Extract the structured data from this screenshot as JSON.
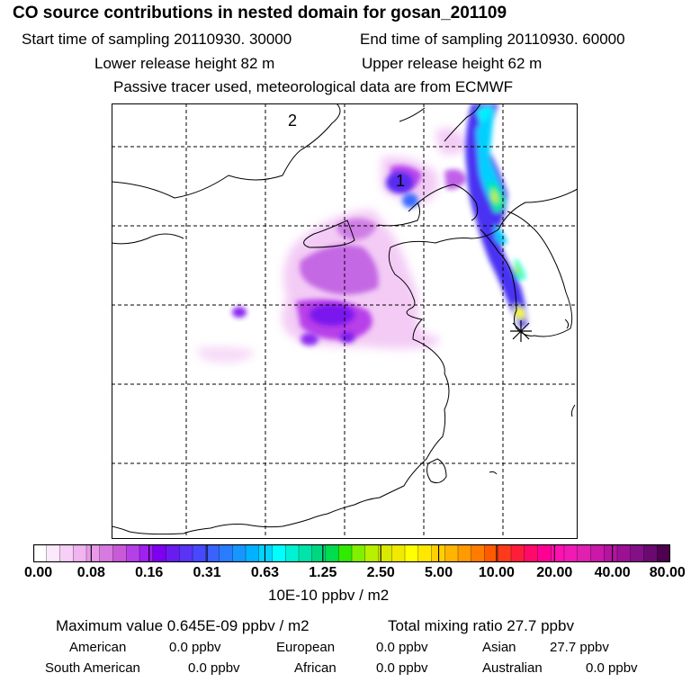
{
  "header": {
    "title": "CO  source contributions in nested domain for gosan_201109",
    "start_time": "Start time of sampling 20110930. 30000",
    "end_time": "End time of sampling 20110930. 60000",
    "lower_release": "Lower release height   82 m",
    "upper_release": "Upper release height   62 m",
    "tracer_note": "Passive tracer used, meteorological data are from ECMWF"
  },
  "map": {
    "label_1": "1",
    "label_2": "2"
  },
  "colorbar": {
    "ticks": [
      "0.00",
      "0.08",
      "0.16",
      "0.31",
      "0.63",
      "1.25",
      "2.50",
      "5.00",
      "10.00",
      "20.00",
      "40.00",
      "80.00"
    ],
    "unit": "10E-10 ppbv / m2",
    "colors": [
      "#ffffff",
      "#fbe8fb",
      "#f6d0f6",
      "#f0b4f0",
      "#e69ae8",
      "#d77ae0",
      "#c85ad8",
      "#b640e8",
      "#a020f0",
      "#7e00f0",
      "#6a1cf0",
      "#5a34f4",
      "#4848ff",
      "#3a62ff",
      "#2a7cff",
      "#1896ff",
      "#00b2ff",
      "#00d4ff",
      "#00ffff",
      "#00f2d4",
      "#00e4aa",
      "#00d880",
      "#00dc4e",
      "#30ea00",
      "#80f000",
      "#b8f000",
      "#d8ea00",
      "#f0ea00",
      "#ffff00",
      "#ffe800",
      "#ffd000",
      "#ffb400",
      "#ff9a00",
      "#ff7c00",
      "#ff5a00",
      "#ff3a1a",
      "#ff1e3a",
      "#ff0a6a",
      "#ff0094",
      "#ff10b0",
      "#f01ab4",
      "#e020b0",
      "#cc18a8",
      "#b414a0",
      "#9c1094",
      "#841088",
      "#6a0a70",
      "#500050"
    ]
  },
  "summary": {
    "max_value": "Maximum value  0.645E-09 ppbv / m2",
    "total_mixing": "Total mixing ratio       27.7 ppbv",
    "american_label": "American",
    "american_value": "0.0 ppbv",
    "european_label": "European",
    "european_value": "0.0 ppbv",
    "asian_label": "Asian",
    "asian_value": "27.7 ppbv",
    "south_american_label": "South American",
    "south_american_value": "0.0 ppbv",
    "african_label": "African",
    "african_value": "0.0 ppbv",
    "australian_label": "Australian",
    "australian_value": "0.0 ppbv"
  }
}
